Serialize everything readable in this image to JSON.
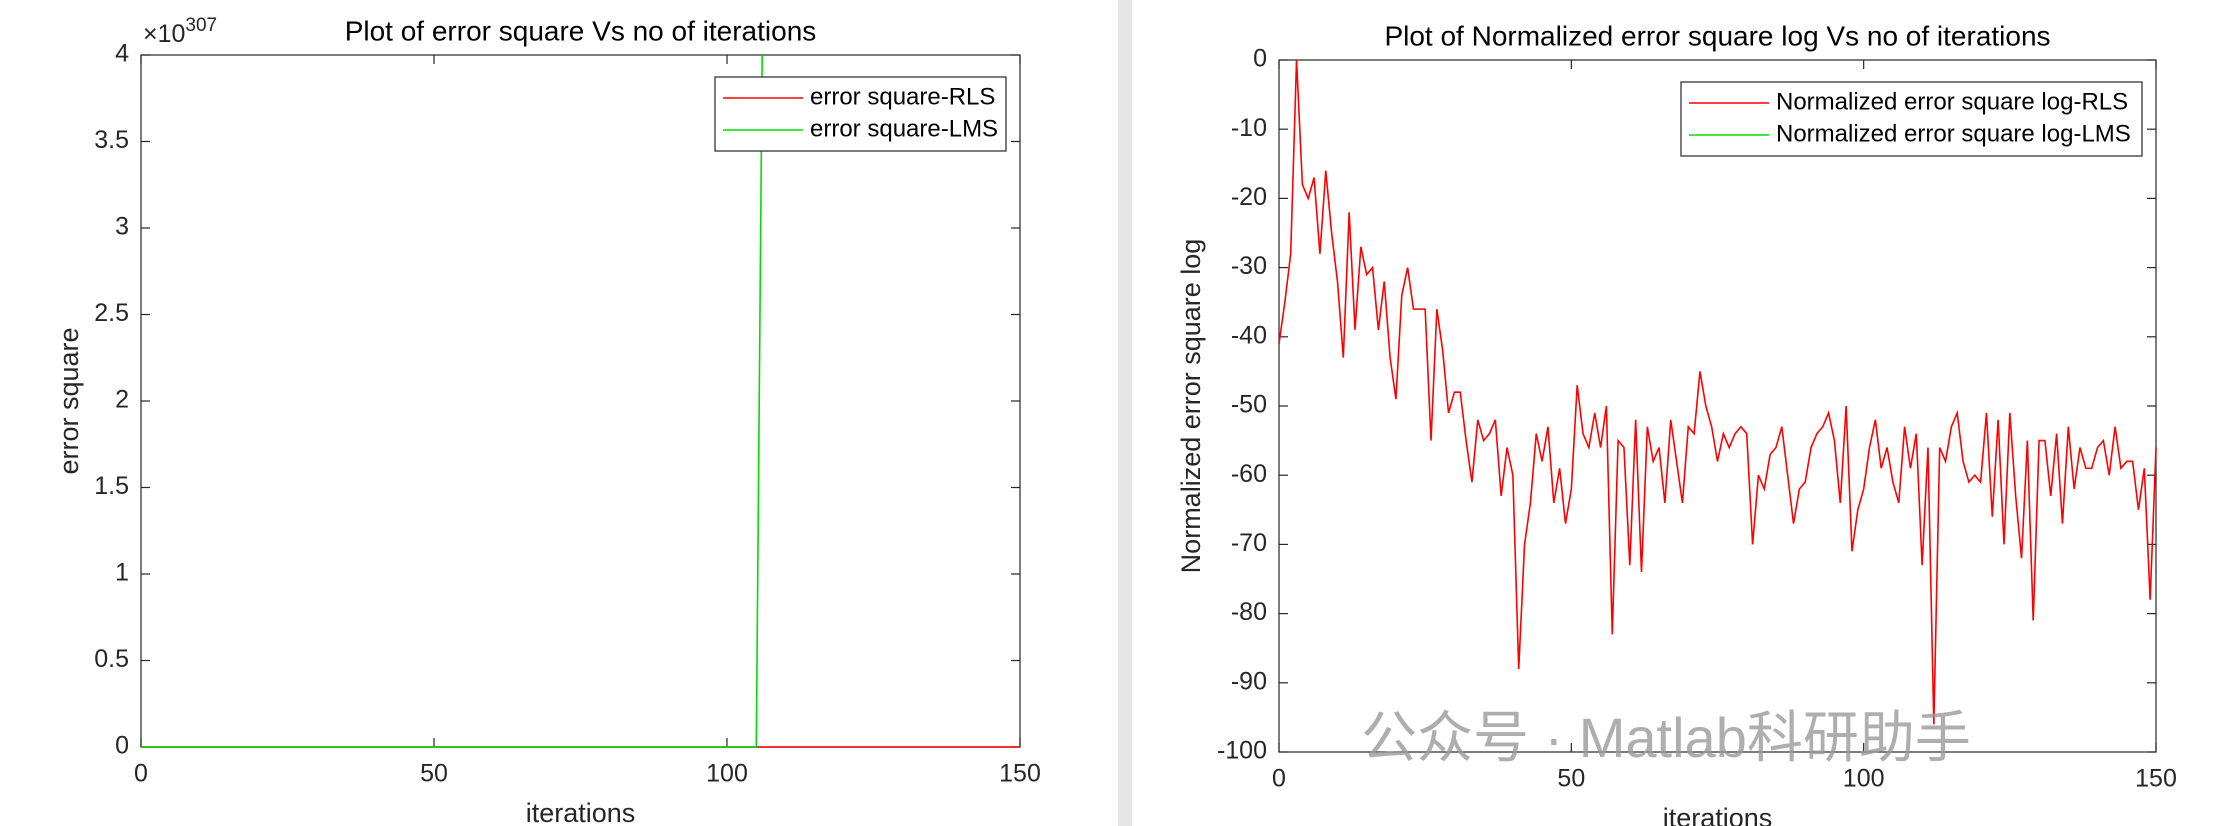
{
  "chart_data": [
    {
      "type": "line",
      "title": "Plot of error square Vs no of iterations",
      "x_label": "iterations",
      "y_label": "error square",
      "y_multiplier": {
        "base": "×10",
        "exponent": "307"
      },
      "xlim": [
        0,
        150
      ],
      "xticks": [
        0,
        50,
        100,
        150
      ],
      "ylim": [
        0,
        4
      ],
      "yticks": [
        0,
        0.5,
        1,
        1.5,
        2,
        2.5,
        3,
        3.5,
        4
      ],
      "legend": "northeast",
      "grid": false,
      "series": [
        {
          "name": "error square-RLS",
          "color": "#ff0000",
          "x": [
            0,
            150
          ],
          "values": [
            0,
            0
          ]
        },
        {
          "name": "error square-LMS",
          "color": "#00dd00",
          "x": [
            0,
            105,
            106
          ],
          "values": [
            0,
            0,
            4
          ]
        }
      ]
    },
    {
      "type": "line",
      "title": "Plot of Normalized error square log Vs no of iterations",
      "x_label": "iterations",
      "y_label": "Normalized error square log",
      "xlim": [
        0,
        150
      ],
      "xticks": [
        0,
        50,
        100,
        150
      ],
      "ylim": [
        -100,
        0
      ],
      "yticks": [
        -100,
        -90,
        -80,
        -70,
        -60,
        -50,
        -40,
        -30,
        -20,
        -10,
        0
      ],
      "legend": "northeast",
      "grid": false,
      "series": [
        {
          "name": "Normalized error square log-RLS",
          "color": "#ff0000",
          "x": [
            0,
            1,
            2,
            3,
            4,
            5,
            6,
            7,
            8,
            9,
            10,
            11,
            12,
            13,
            14,
            15,
            16,
            17,
            18,
            19,
            20,
            21,
            22,
            23,
            24,
            25,
            26,
            27,
            28,
            29,
            30,
            31,
            32,
            33,
            34,
            35,
            36,
            37,
            38,
            39,
            40,
            41,
            42,
            43,
            44,
            45,
            46,
            47,
            48,
            49,
            50,
            51,
            52,
            53,
            54,
            55,
            56,
            57,
            58,
            59,
            60,
            61,
            62,
            63,
            64,
            65,
            66,
            67,
            68,
            69,
            70,
            71,
            72,
            73,
            74,
            75,
            76,
            77,
            78,
            79,
            80,
            81,
            82,
            83,
            84,
            85,
            86,
            87,
            88,
            89,
            90,
            91,
            92,
            93,
            94,
            95,
            96,
            97,
            98,
            99,
            100,
            101,
            102,
            103,
            104,
            105,
            106,
            107,
            108,
            109,
            110,
            111,
            112,
            113,
            114,
            115,
            116,
            117,
            118,
            119,
            120,
            121,
            122,
            123,
            124,
            125,
            126,
            127,
            128,
            129,
            130,
            131,
            132,
            133,
            134,
            135,
            136,
            137,
            138,
            139,
            140,
            141,
            142,
            143,
            144,
            145,
            146,
            147,
            148,
            149,
            150
          ],
          "values": [
            -41,
            -35,
            -28,
            0,
            -18,
            -20,
            -17,
            -28,
            -16,
            -25,
            -32,
            -43,
            -22,
            -39,
            -27,
            -31,
            -30,
            -39,
            -32,
            -43,
            -49,
            -34,
            -30,
            -36,
            -36,
            -36,
            -55,
            -36,
            -42,
            -51,
            -48,
            -48,
            -55,
            -61,
            -52,
            -55,
            -54,
            -52,
            -63,
            -56,
            -60,
            -88,
            -70,
            -64,
            -54,
            -58,
            -53,
            -64,
            -59,
            -67,
            -62,
            -47,
            -54,
            -56,
            -51,
            -56,
            -50,
            -83,
            -55,
            -56,
            -73,
            -52,
            -74,
            -53,
            -58,
            -56,
            -64,
            -52,
            -58,
            -64,
            -53,
            -54,
            -45,
            -50,
            -53,
            -58,
            -54,
            -56,
            -54,
            -53,
            -54,
            -70,
            -60,
            -62,
            -57,
            -56,
            -53,
            -60,
            -67,
            -62,
            -61,
            -56,
            -54,
            -53,
            -51,
            -55,
            -64,
            -50,
            -71,
            -65,
            -62,
            -56,
            -52,
            -59,
            -56,
            -61,
            -64,
            -53,
            -59,
            -54,
            -73,
            -56,
            -96,
            -56,
            -58,
            -53,
            -51,
            -58,
            -61,
            -60,
            -61,
            -51,
            -66,
            -52,
            -70,
            -51,
            -63,
            -72,
            -55,
            -81,
            -55,
            -55,
            -63,
            -54,
            -67,
            -53,
            -62,
            -56,
            -59,
            -59,
            -56,
            -55,
            -60,
            -53,
            -59,
            -58,
            -58,
            -65,
            -59,
            -78,
            -56
          ]
        },
        {
          "name": "Normalized error square log-LMS",
          "color": "#00dd00",
          "x": [],
          "values": []
        }
      ]
    }
  ],
  "watermark": "公众号 · Matlab科研助手"
}
